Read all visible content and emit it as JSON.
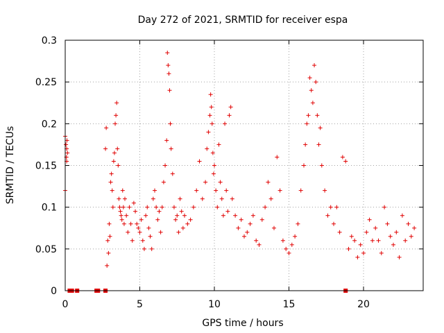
{
  "chart_data": {
    "type": "scatter",
    "title": "Day 272 of 2021, SRMTID for receiver espa",
    "xlabel": "GPS time / hours",
    "ylabel": "SRMTID / TECUs",
    "xlim": [
      0,
      24
    ],
    "ylim": [
      0,
      0.3
    ],
    "x_ticks": [
      0,
      5,
      10,
      15,
      20
    ],
    "x_tick_labels": [
      "0",
      "5",
      "10",
      "15",
      "20"
    ],
    "y_ticks": [
      0,
      0.05,
      0.1,
      0.15,
      0.2,
      0.25,
      0.3
    ],
    "y_tick_labels": [
      "0",
      "0.05",
      "0.1",
      "0.15",
      "0.2",
      "0.25",
      "0.3"
    ],
    "grid": true,
    "marker": "+",
    "color": "#e00000",
    "series": [
      {
        "name": "SRMTID",
        "x": [
          0.0,
          0.05,
          0.08,
          0.1,
          0.12,
          0.15,
          0.0,
          0.1,
          2.7,
          2.75,
          2.8,
          2.85,
          2.9,
          2.95,
          3.0,
          3.05,
          3.1,
          3.15,
          3.2,
          3.25,
          3.3,
          3.35,
          3.4,
          3.45,
          3.5,
          3.55,
          3.6,
          3.65,
          3.7,
          3.75,
          3.8,
          3.85,
          3.9,
          3.95,
          4.0,
          4.1,
          4.2,
          4.3,
          4.4,
          4.5,
          4.6,
          4.7,
          4.8,
          4.9,
          5.0,
          5.1,
          5.2,
          5.3,
          5.4,
          5.5,
          5.6,
          5.7,
          5.8,
          5.9,
          6.0,
          6.1,
          6.2,
          6.3,
          6.4,
          6.5,
          6.6,
          6.7,
          6.8,
          6.85,
          6.9,
          6.95,
          7.0,
          7.05,
          7.1,
          7.2,
          7.3,
          7.4,
          7.5,
          7.6,
          7.7,
          7.8,
          7.9,
          8.0,
          8.2,
          8.4,
          8.6,
          8.8,
          9.0,
          9.2,
          9.4,
          9.5,
          9.6,
          9.7,
          9.75,
          9.8,
          9.85,
          9.9,
          9.95,
          10.0,
          10.1,
          10.2,
          10.3,
          10.4,
          10.5,
          10.6,
          10.7,
          10.8,
          10.9,
          11.0,
          11.1,
          11.2,
          11.4,
          11.6,
          11.8,
          12.0,
          12.2,
          12.4,
          12.6,
          12.8,
          13.0,
          13.2,
          13.4,
          13.6,
          13.8,
          14.0,
          14.2,
          14.4,
          14.6,
          14.8,
          15.0,
          15.2,
          15.4,
          15.6,
          15.8,
          16.0,
          16.1,
          16.2,
          16.3,
          16.4,
          16.5,
          16.6,
          16.7,
          16.8,
          16.9,
          17.0,
          17.1,
          17.2,
          17.4,
          17.6,
          17.8,
          18.0,
          18.2,
          18.4,
          18.6,
          18.8,
          19.0,
          19.2,
          19.4,
          19.6,
          19.8,
          20.0,
          20.2,
          20.4,
          20.6,
          20.8,
          21.0,
          21.2,
          21.4,
          21.6,
          21.8,
          22.0,
          22.2,
          22.4,
          22.6,
          22.8,
          23.0,
          23.2,
          23.4
        ],
        "y": [
          0.185,
          0.175,
          0.16,
          0.17,
          0.18,
          0.165,
          0.12,
          0.155,
          0.17,
          0.195,
          0.03,
          0.06,
          0.045,
          0.08,
          0.065,
          0.13,
          0.14,
          0.12,
          0.1,
          0.155,
          0.165,
          0.2,
          0.21,
          0.225,
          0.17,
          0.15,
          0.11,
          0.1,
          0.095,
          0.09,
          0.085,
          0.12,
          0.1,
          0.08,
          0.11,
          0.09,
          0.07,
          0.1,
          0.08,
          0.06,
          0.105,
          0.095,
          0.08,
          0.075,
          0.07,
          0.085,
          0.06,
          0.05,
          0.09,
          0.1,
          0.075,
          0.065,
          0.05,
          0.11,
          0.12,
          0.1,
          0.085,
          0.095,
          0.07,
          0.1,
          0.13,
          0.15,
          0.18,
          0.285,
          0.27,
          0.26,
          0.24,
          0.2,
          0.17,
          0.14,
          0.1,
          0.085,
          0.09,
          0.07,
          0.11,
          0.095,
          0.075,
          0.09,
          0.08,
          0.085,
          0.1,
          0.12,
          0.155,
          0.11,
          0.13,
          0.17,
          0.19,
          0.21,
          0.235,
          0.22,
          0.2,
          0.165,
          0.14,
          0.15,
          0.12,
          0.1,
          0.175,
          0.13,
          0.11,
          0.09,
          0.2,
          0.12,
          0.095,
          0.21,
          0.22,
          0.11,
          0.09,
          0.075,
          0.085,
          0.065,
          0.07,
          0.08,
          0.09,
          0.06,
          0.055,
          0.085,
          0.1,
          0.13,
          0.11,
          0.075,
          0.16,
          0.12,
          0.06,
          0.05,
          0.045,
          0.055,
          0.065,
          0.08,
          0.12,
          0.15,
          0.175,
          0.2,
          0.21,
          0.255,
          0.24,
          0.225,
          0.27,
          0.25,
          0.21,
          0.175,
          0.195,
          0.15,
          0.12,
          0.09,
          0.1,
          0.08,
          0.1,
          0.07,
          0.16,
          0.155,
          0.05,
          0.065,
          0.06,
          0.04,
          0.055,
          0.045,
          0.07,
          0.085,
          0.06,
          0.075,
          0.06,
          0.045,
          0.1,
          0.08,
          0.065,
          0.055,
          0.07,
          0.04,
          0.09,
          0.06,
          0.08,
          0.065,
          0.075
        ]
      }
    ],
    "zero_markers_x": [
      0.3,
      0.35,
      0.45,
      0.8,
      2.1,
      2.2,
      2.7,
      18.8
    ]
  }
}
